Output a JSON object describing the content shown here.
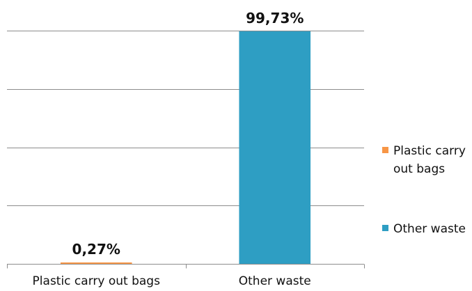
{
  "chart_data": {
    "type": "bar",
    "categories": [
      "Plastic carry out bags",
      "Other waste"
    ],
    "values": [
      0.27,
      99.73
    ],
    "value_labels": [
      "0,27%",
      "99,73%"
    ],
    "colors": [
      "#F79646",
      "#2E9EC3"
    ],
    "title": "",
    "xlabel": "",
    "ylabel": "",
    "ylim": [
      0,
      100
    ],
    "grid": true,
    "y_tick_labels_shown": false,
    "legend": {
      "placement": "right",
      "entries": [
        {
          "label_lines": [
            "Plastic carry",
            "out bags"
          ],
          "color": "#F79646",
          "icon": "square-swatch-icon"
        },
        {
          "label_lines": [
            "Other waste"
          ],
          "color": "#2E9EC3",
          "icon": "square-swatch-icon"
        }
      ]
    }
  }
}
